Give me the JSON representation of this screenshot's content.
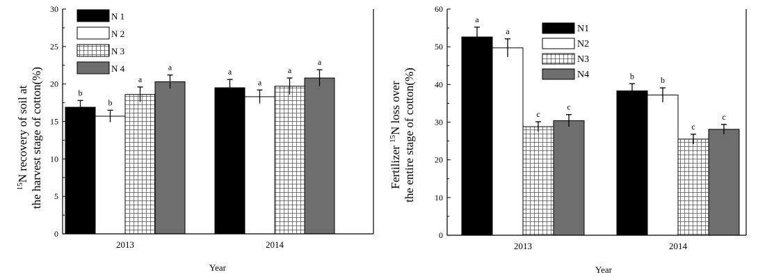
{
  "chart_data": [
    {
      "type": "bar",
      "ylabel_line1": "recovery of soil at",
      "ylabel_line1_prefix": "N",
      "ylabel_sup": "15",
      "ylabel_line2": "the harvest stage of cotton(%)",
      "xlabel": "Year",
      "ylim": [
        0,
        30
      ],
      "yticks": [
        "0",
        "5",
        "10",
        "15",
        "20",
        "25",
        "30"
      ],
      "categories": [
        "2013",
        "2014"
      ],
      "series": [
        {
          "name": "N 1",
          "pattern": "solid-black",
          "values": [
            16.9,
            19.5
          ],
          "err": [
            0.9,
            1.1
          ],
          "letters": [
            "b",
            "a"
          ]
        },
        {
          "name": "N 2",
          "pattern": "white",
          "values": [
            15.7,
            18.3
          ],
          "err": [
            0.8,
            0.9
          ],
          "letters": [
            "b",
            "a"
          ]
        },
        {
          "name": "N 3",
          "pattern": "grid",
          "values": [
            18.6,
            19.7
          ],
          "err": [
            1.0,
            1.1
          ],
          "letters": [
            "a",
            "a"
          ]
        },
        {
          "name": "N 4",
          "pattern": "gray",
          "values": [
            20.3,
            20.8
          ],
          "err": [
            0.9,
            1.1
          ],
          "letters": [
            "a",
            "a"
          ]
        }
      ],
      "legend_position": "top-left"
    },
    {
      "type": "bar",
      "ylabel_line1": "Fertilizer",
      "ylabel_sup": "15",
      "ylabel_line1_suffix": "N loss over",
      "ylabel_line2": "the entire stage of cotton(%)",
      "xlabel": "Year",
      "ylim": [
        0,
        60
      ],
      "yticks": [
        "0",
        "10",
        "20",
        "30",
        "40",
        "50",
        "60"
      ],
      "categories": [
        "2013",
        "2014"
      ],
      "series": [
        {
          "name": "N1",
          "pattern": "solid-black",
          "values": [
            52.6,
            38.3
          ],
          "err": [
            2.6,
            1.9
          ],
          "letters": [
            "a",
            "b"
          ]
        },
        {
          "name": "N2",
          "pattern": "white",
          "values": [
            49.7,
            37.2
          ],
          "err": [
            2.4,
            1.9
          ],
          "letters": [
            "a",
            "b"
          ]
        },
        {
          "name": "N3",
          "pattern": "grid",
          "values": [
            28.8,
            25.5
          ],
          "err": [
            1.3,
            1.3
          ],
          "letters": [
            "c",
            "c"
          ]
        },
        {
          "name": "N4",
          "pattern": "gray",
          "values": [
            30.4,
            28.1
          ],
          "err": [
            1.6,
            1.3
          ],
          "letters": [
            "c",
            "c"
          ]
        }
      ],
      "legend_position": "top-center"
    }
  ]
}
